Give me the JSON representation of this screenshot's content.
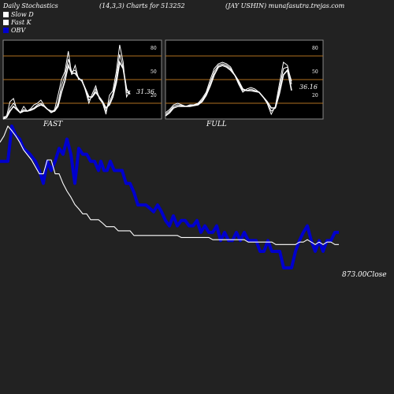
{
  "header": {
    "title": "Daily Stochastics",
    "params": "(14,3,3) Charts for 513252",
    "symbol": "(JAY USHIN) munafasutra.trejas.com"
  },
  "legend": [
    {
      "label": "Slow  D",
      "color": "#ffffff"
    },
    {
      "label": "Fast K",
      "color": "#ffffff"
    },
    {
      "label": "OBV",
      "color": "#0000cc"
    }
  ],
  "colors": {
    "background": "#222222",
    "grid": "#b07020",
    "panel": "#000000",
    "obv": "#0000cc",
    "price": "#ffffff"
  },
  "chart_data": [
    {
      "type": "line",
      "panel_label": "FAST",
      "ylim": [
        0,
        100
      ],
      "levels": [
        20,
        50,
        80
      ],
      "tick_labels": [
        "80",
        "50",
        "20"
      ],
      "last_value_label": "31.36",
      "series": [
        {
          "values": [
            2,
            4,
            22,
            26,
            12,
            8,
            16,
            10,
            13,
            18,
            20,
            24,
            17,
            12,
            8,
            12,
            30,
            50,
            60,
            86,
            56,
            68,
            50,
            50,
            36,
            20,
            32,
            42,
            26,
            20,
            6,
            30,
            36,
            60,
            94,
            72,
            28,
            36
          ]
        },
        {
          "values": [
            2,
            2,
            14,
            20,
            14,
            8,
            12,
            10,
            12,
            14,
            18,
            20,
            16,
            12,
            8,
            10,
            20,
            42,
            55,
            76,
            60,
            62,
            52,
            48,
            38,
            24,
            28,
            38,
            28,
            22,
            10,
            22,
            32,
            52,
            82,
            66,
            34,
            32
          ]
        },
        {
          "values": [
            0,
            2,
            10,
            16,
            12,
            8,
            10,
            10,
            11,
            13,
            16,
            18,
            16,
            12,
            10,
            10,
            16,
            34,
            48,
            68,
            58,
            58,
            52,
            48,
            38,
            28,
            28,
            34,
            28,
            22,
            14,
            18,
            28,
            46,
            72,
            64,
            38,
            31.36
          ]
        }
      ]
    },
    {
      "type": "line",
      "panel_label": "FULL",
      "ylim": [
        0,
        100
      ],
      "levels": [
        20,
        50,
        80
      ],
      "tick_labels": [
        "80",
        "50",
        "20"
      ],
      "last_value_label": "36.16",
      "series": [
        {
          "values": [
            8,
            12,
            18,
            20,
            18,
            16,
            18,
            18,
            20,
            26,
            34,
            50,
            64,
            70,
            72,
            70,
            66,
            56,
            44,
            34,
            38,
            40,
            38,
            34,
            28,
            20,
            6,
            16,
            44,
            72,
            68,
            44
          ]
        },
        {
          "values": [
            6,
            10,
            16,
            18,
            17,
            16,
            17,
            18,
            19,
            24,
            32,
            46,
            60,
            68,
            70,
            68,
            64,
            56,
            46,
            36,
            36,
            38,
            36,
            34,
            28,
            20,
            10,
            14,
            38,
            64,
            66,
            48
          ]
        },
        {
          "values": [
            4,
            8,
            14,
            16,
            16,
            16,
            16,
            17,
            18,
            22,
            30,
            42,
            56,
            66,
            68,
            66,
            62,
            56,
            48,
            38,
            36,
            36,
            35,
            34,
            28,
            22,
            14,
            14,
            32,
            56,
            62,
            36.16
          ]
        }
      ]
    },
    {
      "type": "line",
      "price_label": "873.00",
      "close_label": "Close",
      "series": [
        {
          "name": "OBV",
          "x": [
            0,
            10,
            15,
            20,
            25,
            30,
            38,
            45,
            50,
            55,
            60,
            65,
            70,
            75,
            80,
            85,
            90,
            95,
            100,
            105,
            110,
            115,
            120,
            125,
            128,
            132,
            136,
            140,
            145,
            150,
            155,
            160,
            165,
            170,
            175,
            180,
            185,
            190,
            195,
            200,
            205,
            210,
            215,
            220,
            225,
            230,
            235,
            240,
            245,
            250,
            255,
            260,
            265,
            270,
            275,
            280,
            285,
            290,
            295,
            300,
            305,
            310,
            315,
            320,
            325,
            330,
            335,
            340,
            345,
            350,
            355,
            360,
            365,
            370,
            375,
            380,
            385,
            390,
            395,
            400,
            405,
            410,
            415,
            420,
            425,
            430
          ],
          "y": [
            4,
            4,
            12,
            9,
            8,
            6,
            5,
            4,
            3,
            2,
            4,
            3,
            4,
            6,
            5,
            8,
            5,
            2,
            6,
            5,
            5,
            4,
            4,
            3,
            4,
            3,
            3,
            4,
            3,
            3,
            3,
            2,
            2,
            1.5,
            1,
            1,
            1,
            0.9,
            0.8,
            1,
            0.8,
            0.6,
            0.5,
            0.7,
            0.5,
            0.6,
            0.6,
            0.5,
            0.5,
            0.6,
            0.4,
            0.5,
            0.4,
            0.4,
            0.5,
            0.3,
            0.4,
            0.3,
            0.3,
            0.4,
            0.3,
            0.4,
            0.3,
            0.3,
            0.3,
            0.2,
            0.2,
            0.3,
            0.2,
            0.2,
            0.2,
            0.1,
            0.1,
            0.1,
            0.2,
            0.3,
            0.4,
            0.5,
            0.3,
            0.2,
            0.3,
            0.2,
            0.3,
            0.3,
            0.4,
            0.4
          ]
        },
        {
          "name": "Close",
          "x": [
            0,
            5,
            10,
            15,
            20,
            25,
            30,
            40,
            50,
            55,
            60,
            65,
            70,
            75,
            80,
            85,
            90,
            95,
            100,
            105,
            110,
            115,
            120,
            125,
            130,
            135,
            140,
            145,
            150,
            155,
            160,
            165,
            170,
            175,
            180,
            185,
            190,
            195,
            200,
            205,
            210,
            215,
            220,
            225,
            230,
            235,
            240,
            245,
            250,
            255,
            260,
            265,
            270,
            275,
            280,
            285,
            290,
            295,
            300,
            305,
            310,
            315,
            320,
            325,
            330,
            335,
            340,
            345,
            350,
            355,
            360,
            365,
            370,
            375,
            380,
            385,
            390,
            395,
            400,
            405,
            410,
            415,
            420,
            425,
            430
          ],
          "y": [
            5,
            6,
            8,
            7,
            6,
            5,
            4,
            3,
            2,
            2,
            3,
            3,
            2,
            2,
            1.5,
            1.2,
            1,
            0.8,
            0.7,
            0.6,
            0.6,
            0.5,
            0.5,
            0.5,
            0.45,
            0.4,
            0.4,
            0.4,
            0.35,
            0.35,
            0.35,
            0.35,
            0.3,
            0.3,
            0.3,
            0.3,
            0.3,
            0.3,
            0.3,
            0.3,
            0.3,
            0.3,
            0.3,
            0.3,
            0.28,
            0.28,
            0.28,
            0.28,
            0.28,
            0.28,
            0.28,
            0.28,
            0.26,
            0.26,
            0.26,
            0.26,
            0.26,
            0.26,
            0.26,
            0.26,
            0.26,
            0.24,
            0.24,
            0.24,
            0.24,
            0.24,
            0.24,
            0.24,
            0.22,
            0.22,
            0.22,
            0.22,
            0.22,
            0.22,
            0.24,
            0.24,
            0.26,
            0.24,
            0.22,
            0.24,
            0.22,
            0.24,
            0.24,
            0.22,
            0.22
          ]
        }
      ]
    }
  ]
}
